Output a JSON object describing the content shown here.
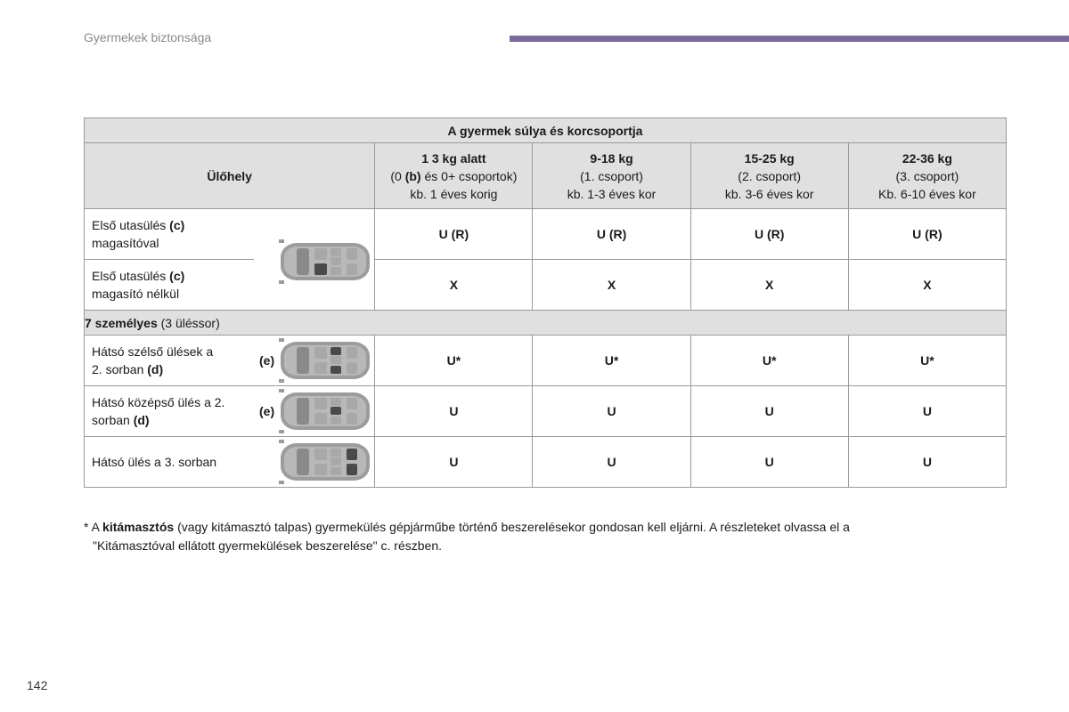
{
  "header": {
    "section_title": "Gyermekek biztonsága",
    "accent_color": "#7b6a9a"
  },
  "table": {
    "group_header": "A gyermek súlya és korcsoportja",
    "seat_header": "Ülőhely",
    "columns": [
      {
        "line1": "1 3 kg alatt",
        "line2_pre": "(0 ",
        "line2_bold": "(b)",
        "line2_post": " és 0+ csoportok)",
        "line3": "kb. 1 éves korig"
      },
      {
        "line1": "9-18 kg",
        "line2": "(1. csoport)",
        "line3": "kb. 1-3 éves kor"
      },
      {
        "line1": "15-25 kg",
        "line2": "(2. csoport)",
        "line3": "kb. 3-6 éves kor"
      },
      {
        "line1": "22-36 kg",
        "line2": "(3. csoport)",
        "line3": "Kb. 6-10 éves kor"
      }
    ],
    "rows": [
      {
        "label_pre": "Első utasülés ",
        "label_bold": "(c)",
        "label_post": "magasítóval",
        "values": [
          "U (R)",
          "U (R)",
          "U (R)",
          "U (R)"
        ]
      },
      {
        "label_pre": "Első utasülés ",
        "label_bold": "(c)",
        "label_post": "magasító nélkül",
        "values": [
          "X",
          "X",
          "X",
          "X"
        ]
      }
    ],
    "group_row": {
      "bold": "7 személyes",
      "normal": " (3 üléssor)"
    },
    "rows2": [
      {
        "label_pre": "Hátsó szélső ülések a 2. sorban ",
        "label_bold": "(d)",
        "note": "(e)",
        "values": [
          "U*",
          "U*",
          "U*",
          "U*"
        ]
      },
      {
        "label_pre": "Hátsó középső ülés a 2. sorban ",
        "label_bold": "(d)",
        "note": "(e)",
        "values": [
          "U",
          "U",
          "U",
          "U"
        ]
      },
      {
        "label_pre": "Hátsó ülés a 3. sorban",
        "label_bold": "",
        "note": "",
        "values": [
          "U",
          "U",
          "U",
          "U"
        ]
      }
    ]
  },
  "footnote": {
    "star": "* A ",
    "bold": "kitámasztós",
    "text": " (vagy kitámasztó talpas) gyermekülés gépjárműbe történő beszerelésekor gondosan kell eljárni. A részleteket olvassa el a",
    "line2": "\"Kitámasztóval ellátott gyermekülések beszerelése\" c. részben."
  },
  "page_number": "142"
}
